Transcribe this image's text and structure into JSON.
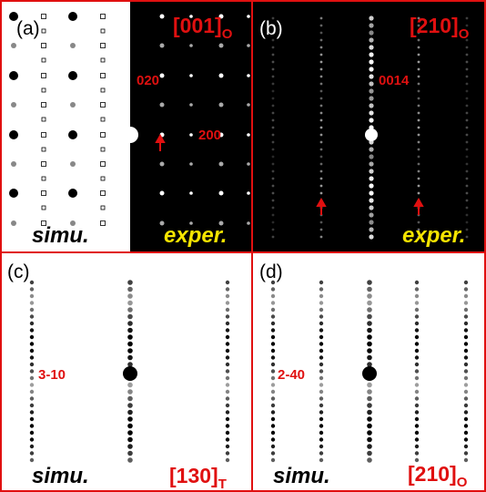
{
  "panels": [
    {
      "label": "(a)",
      "zone": "[001]",
      "zone_sub": "O",
      "spots": [
        "020",
        "200"
      ],
      "captions": [
        "simu.",
        "exper."
      ]
    },
    {
      "label": "(b)",
      "zone": "[210]",
      "zone_sub": "O",
      "spots": [
        "0014"
      ],
      "captions": [
        "exper."
      ]
    },
    {
      "label": "(c)",
      "zone": "[130]",
      "zone_sub": "T",
      "spots": [
        "3-10"
      ],
      "captions": [
        "simu."
      ]
    },
    {
      "label": "(d)",
      "zone": "[210]",
      "zone_sub": "O",
      "spots": [
        "2-40"
      ],
      "captions": [
        "simu."
      ]
    }
  ]
}
